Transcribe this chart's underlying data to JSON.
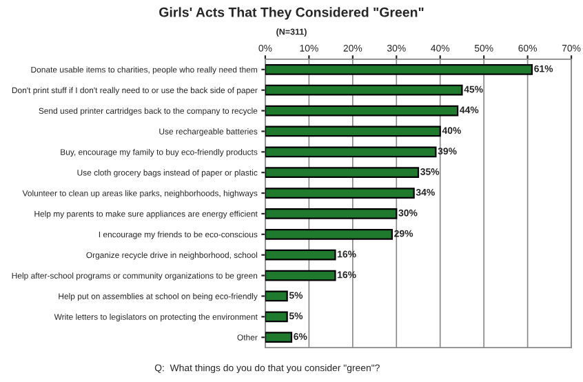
{
  "chart_data": {
    "type": "bar",
    "orientation": "horizontal",
    "title": "Girls' Acts That They Considered \"Green\"",
    "subtitle": "(N=311)",
    "categories": [
      "Donate usable items to charities, people who really need them",
      "Don't print stuff if I don't really need to or use the back side of paper",
      "Send used printer cartridges back to the company to recycle",
      "Use rechargeable batteries",
      "Buy, encourage my family to buy eco-friendly products",
      "Use cloth grocery bags instead of paper or plastic",
      "Volunteer to clean up areas like parks, neighborhoods, highways",
      "Help my parents to make sure appliances are energy efficient",
      "I encourage my friends to be eco-conscious",
      "Organize recycle drive in neighborhood, school",
      "Help after-school programs or community organizations to be green",
      "Help put on assemblies at school on being eco-friendly",
      "Write letters to legislators on protecting the environment",
      "Other"
    ],
    "values": [
      61,
      45,
      44,
      40,
      39,
      35,
      34,
      30,
      29,
      16,
      16,
      5,
      5,
      6
    ],
    "value_labels": [
      "61%",
      "45%",
      "44%",
      "40%",
      "39%",
      "35%",
      "34%",
      "30%",
      "29%",
      "16%",
      "16%",
      "5%",
      "5%",
      "6%"
    ],
    "color": "#1f7a2e",
    "xlim": [
      0,
      70
    ],
    "xticks": [
      {
        "value": 0,
        "label": "0%"
      },
      {
        "value": 10,
        "label": "10%"
      },
      {
        "value": 20,
        "label": "20%"
      },
      {
        "value": 30,
        "label": "30%"
      },
      {
        "value": 40,
        "label": "40%"
      },
      {
        "value": 50,
        "label": "50%"
      },
      {
        "value": 60,
        "label": "60%"
      },
      {
        "value": 70,
        "label": "70%"
      }
    ],
    "grid": "x",
    "legend": false,
    "annotations": [
      "Q:  What things do you do that you consider \"green\"?"
    ]
  }
}
